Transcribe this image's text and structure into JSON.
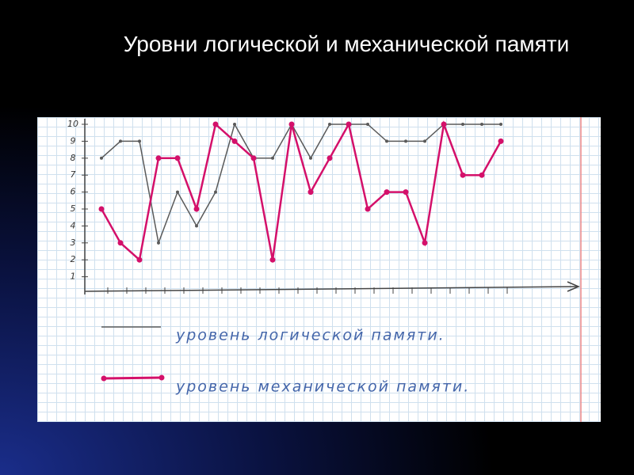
{
  "chart_data": {
    "type": "line",
    "title": "Уровни логической и механической памяти",
    "categories": [
      null,
      null,
      null,
      null,
      null,
      null,
      null,
      null,
      null,
      null,
      null,
      null,
      null,
      null,
      null,
      null,
      null,
      null,
      null,
      null,
      null,
      null
    ],
    "series": [
      {
        "name": "уровень логической памяти.",
        "color": "#5a5a5a",
        "values": [
          8,
          9,
          9,
          3,
          6,
          4,
          6,
          10,
          8,
          8,
          10,
          8,
          10,
          10,
          10,
          9,
          9,
          9,
          10,
          10,
          10,
          10
        ]
      },
      {
        "name": "уровень механической памяти.",
        "color": "#d4106a",
        "values": [
          5,
          3,
          2,
          8,
          8,
          5,
          10,
          9,
          8,
          2,
          10,
          6,
          8,
          10,
          5,
          6,
          6,
          3,
          10,
          7,
          7,
          9
        ]
      }
    ],
    "ylim": [
      0,
      10
    ],
    "yticks": [
      1,
      2,
      3,
      4,
      5,
      6,
      7,
      8,
      9,
      10
    ],
    "grid": true
  }
}
